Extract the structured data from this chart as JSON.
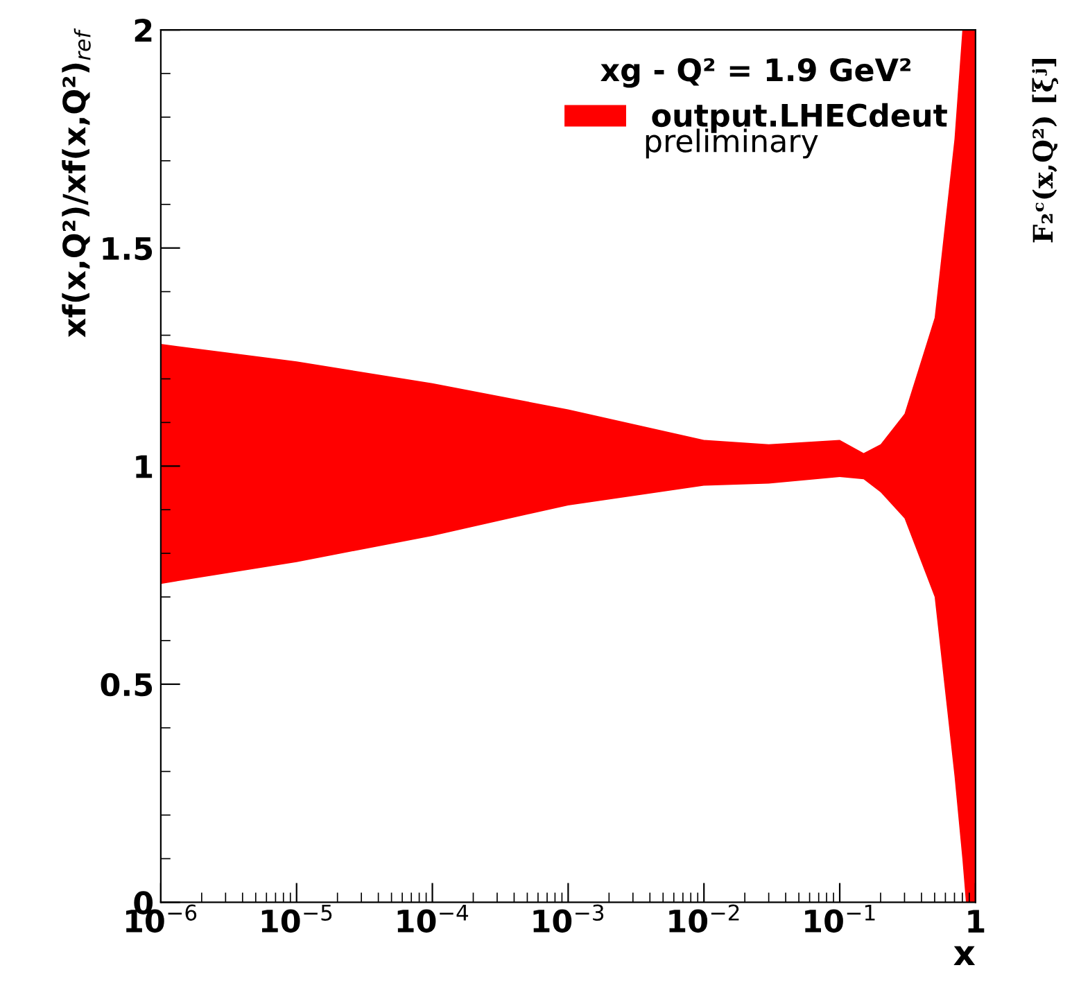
{
  "chart_data": {
    "type": "area",
    "legend_title": "xg - Q² = 1.9 GeV²",
    "xlabel": "x",
    "ylabel": "xf(x,Q²)/xf(x,Q²)$_{ref}$",
    "y2label": "F₂ᶜ(x,Q²) [ξʲ]",
    "annotations": [
      "preliminary"
    ],
    "log": "x",
    "xlim": [
      1e-06,
      1
    ],
    "ylim": [
      0,
      2
    ],
    "xticks": [
      {
        "value": 1e-06,
        "label": "10$^{−6}$"
      },
      {
        "value": 1e-05,
        "label": "10$^{−5}$"
      },
      {
        "value": 0.0001,
        "label": "10$^{−4}$"
      },
      {
        "value": 0.001,
        "label": "10$^{−3}$"
      },
      {
        "value": 0.01,
        "label": "10$^{−2}$"
      },
      {
        "value": 0.1,
        "label": "10$^{−1}$"
      },
      1
    ],
    "yticks": [
      0,
      0.5,
      1,
      1.5,
      2
    ],
    "grid": false,
    "legend": "top right",
    "series": [
      {
        "name": "output.LHECdeut",
        "color": "#ff0000",
        "x": [
          1e-06,
          1e-05,
          0.0001,
          0.001,
          0.01,
          0.03,
          0.1,
          0.15,
          0.2,
          0.3,
          0.5,
          0.7,
          0.8,
          0.85,
          1
        ],
        "values": [
          null,
          null,
          null,
          null,
          null,
          null,
          null,
          null,
          null,
          null,
          null,
          null,
          null,
          null,
          null
        ],
        "lower": [
          0.73,
          0.78,
          0.84,
          0.91,
          0.955,
          0.96,
          0.975,
          0.97,
          0.94,
          0.88,
          0.7,
          0.29,
          0.1,
          0,
          0
        ],
        "upper": [
          1.28,
          1.24,
          1.19,
          1.13,
          1.06,
          1.05,
          1.06,
          1.03,
          1.05,
          1.12,
          1.34,
          1.75,
          2,
          2,
          2
        ]
      }
    ]
  }
}
